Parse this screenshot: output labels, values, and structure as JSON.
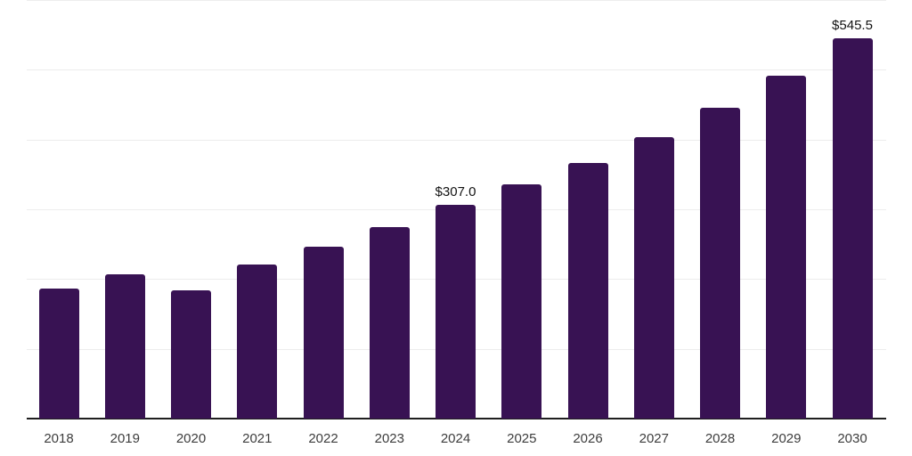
{
  "chart_data": {
    "type": "bar",
    "title": "",
    "xlabel": "",
    "ylabel": "",
    "categories": [
      "2018",
      "2019",
      "2020",
      "2021",
      "2022",
      "2023",
      "2024",
      "2025",
      "2026",
      "2027",
      "2028",
      "2029",
      "2030"
    ],
    "values": [
      186.5,
      207,
      184,
      221,
      247,
      274.5,
      307.0,
      336,
      367,
      403.5,
      445.5,
      491.5,
      545.5
    ],
    "data_labels": [
      "",
      "",
      "",
      "",
      "",
      "",
      "$307.0",
      "",
      "",
      "",
      "",
      "",
      "$545.5"
    ],
    "ylim": [
      0,
      600
    ],
    "grid": true,
    "gridline_values": [
      100,
      200,
      300,
      400,
      500,
      600
    ],
    "y_axis_labels_shown": false,
    "legend_position": "none",
    "colors": {
      "bar": "#381253",
      "axis_line": "#1f1f1f",
      "gridline": "#ededed",
      "tick_label": "#3d3d3d",
      "data_label": "#121212",
      "background": "#ffffff"
    }
  }
}
